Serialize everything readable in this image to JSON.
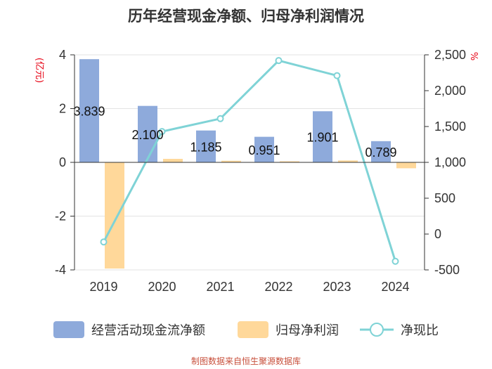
{
  "title": "历年经营现金净额、归母净利润情况",
  "footer": "制图数据来自恒生聚源数据库",
  "chart_data": {
    "type": "bar",
    "title": "历年经营现金净额、归母净利润情况",
    "categories": [
      "2019",
      "2020",
      "2021",
      "2022",
      "2023",
      "2024"
    ],
    "y_left": {
      "label": "(亿元)",
      "ylim": [
        -4,
        4
      ],
      "ticks": [
        -4,
        -2,
        0,
        2,
        4
      ],
      "tick_labels": [
        "-4",
        "-2",
        "0",
        "2",
        "4"
      ]
    },
    "y_right": {
      "label": "%",
      "ylim": [
        -500,
        2500
      ],
      "ticks": [
        -500,
        0,
        500,
        1000,
        1500,
        2000,
        2500
      ],
      "tick_labels": [
        "-500",
        "0",
        "500",
        "1,000",
        "1,500",
        "2,000",
        "2,500"
      ]
    },
    "series": [
      {
        "name": "经营活动现金流净额",
        "type": "bar",
        "axis": "left",
        "color": "#8eaadb",
        "values": [
          3.839,
          2.1,
          1.185,
          0.951,
          1.901,
          0.789
        ],
        "labels": [
          "3.839",
          "2.100",
          "1.185",
          "0.951",
          "1.901",
          "0.789"
        ]
      },
      {
        "name": "归母净利润",
        "type": "bar",
        "axis": "left",
        "color": "#ffd89a",
        "values": [
          -3.95,
          0.13,
          0.06,
          0.04,
          0.07,
          -0.22
        ]
      },
      {
        "name": "净现比",
        "type": "line",
        "axis": "right",
        "color": "#7fd3d6",
        "values": [
          -110,
          1430,
          1610,
          2420,
          2210,
          -380
        ]
      }
    ],
    "grid": true,
    "legend": "bottom"
  }
}
